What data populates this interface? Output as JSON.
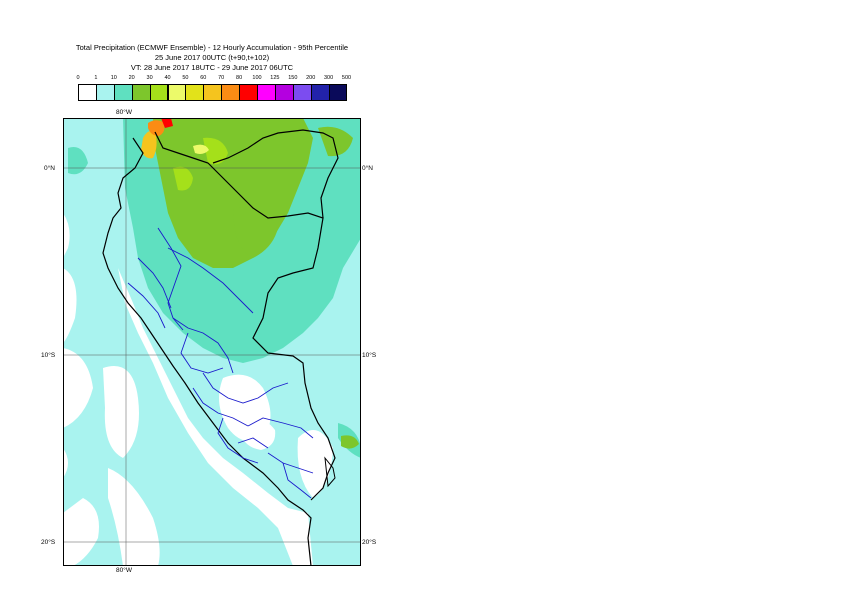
{
  "title": {
    "line1": "Total Precipitation (ECMWF Ensemble) - 12 Hourly Accumulation - 95th Percentile",
    "line2": "25 June 2017 00UTC (t+90,t+102)",
    "line3": "VT: 28 June 2017 18UTC - 29 June 2017 06UTC"
  },
  "colorbar": {
    "ticks": [
      "0",
      "1",
      "10",
      "20",
      "30",
      "40",
      "50",
      "60",
      "70",
      "80",
      "100",
      "125",
      "150",
      "200",
      "300",
      "500"
    ],
    "colors": [
      "#ffffff",
      "#a9f3ef",
      "#5fe0c0",
      "#7dc62c",
      "#a5e01a",
      "#ecfa6a",
      "#e2e21a",
      "#f5c41e",
      "#fb8c14",
      "#ff0000",
      "#ff00ff",
      "#b400e0",
      "#7c4cf0",
      "#2222aa",
      "#0a0a5a"
    ]
  },
  "map": {
    "lon_labels": {
      "top": "80°W",
      "bottom": "80°W"
    },
    "lat_labels": [
      {
        "left": "0°N",
        "right": "0°N"
      },
      {
        "left": "10°S",
        "right": "10°S"
      },
      {
        "left": "20°S",
        "right": "20°S"
      }
    ],
    "colors": {
      "ocean_light": "#a9f3ef",
      "medium": "#5fe0c0",
      "green": "#7dc62c",
      "yellowgreen": "#a5e01a",
      "land_dry": "#ffffff",
      "border": "#000000",
      "regions": "#1a1acc"
    }
  }
}
